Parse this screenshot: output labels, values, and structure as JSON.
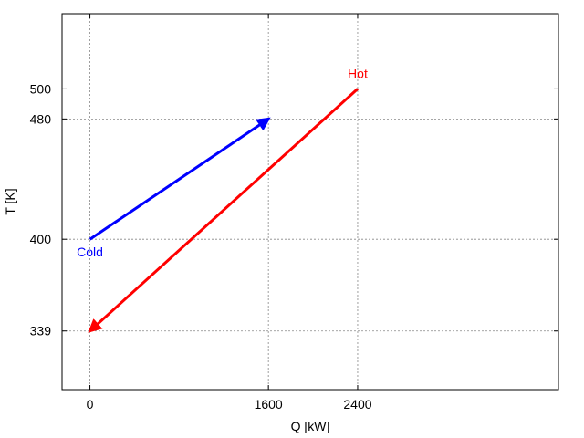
{
  "chart_data": {
    "type": "line",
    "xlabel": "Q [kW]",
    "ylabel": "T [K]",
    "xlim": [
      -250,
      4200
    ],
    "ylim": [
      300,
      550
    ],
    "grid": true,
    "xticks": [
      {
        "value": 0,
        "label": "0"
      },
      {
        "value": 1600,
        "label": "1600"
      },
      {
        "value": 2400,
        "label": "2400"
      }
    ],
    "yticks": [
      {
        "value": 339,
        "label": "339"
      },
      {
        "value": 400,
        "label": "400"
      },
      {
        "value": 480,
        "label": "480"
      },
      {
        "value": 500,
        "label": "500"
      }
    ],
    "series": [
      {
        "name": "Cold",
        "color": "#0000ff",
        "x": [
          0,
          1600
        ],
        "y": [
          400,
          480
        ],
        "arrow": "end"
      },
      {
        "name": "Hot",
        "color": "#ff0000",
        "x": [
          2400,
          0
        ],
        "y": [
          500,
          339
        ],
        "arrow": "end"
      }
    ]
  }
}
